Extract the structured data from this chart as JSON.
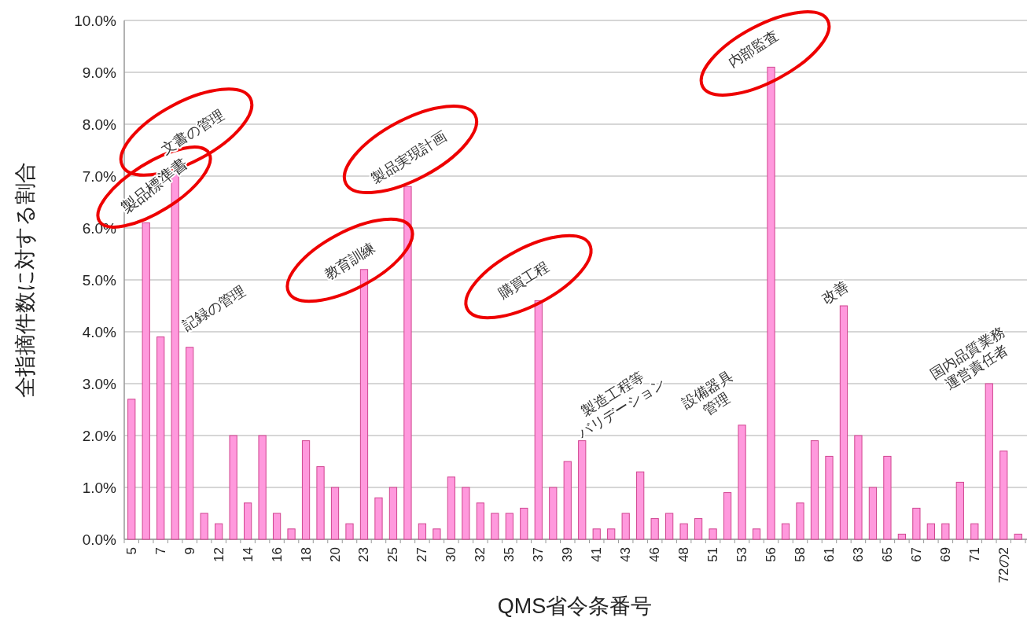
{
  "chart_data": {
    "type": "bar",
    "xlabel": "QMS省令条番号",
    "ylabel": "全指摘件数に対する割合",
    "color": "#ff99dd",
    "categories": [
      "5",
      null,
      "7",
      null,
      "9",
      null,
      "12",
      null,
      "14",
      null,
      "16",
      null,
      "18",
      null,
      "20",
      null,
      "23",
      null,
      "25",
      null,
      "27",
      null,
      "30",
      null,
      "32",
      null,
      "35",
      null,
      "37",
      null,
      "39",
      null,
      "41",
      null,
      "43",
      null,
      "46",
      null,
      "48",
      null,
      "51",
      null,
      "53",
      null,
      "56",
      null,
      "58",
      null,
      "61",
      null,
      "63",
      null,
      "65",
      null,
      "67",
      null,
      "69",
      null,
      "71",
      null,
      "72の2",
      null
    ],
    "values": [
      2.7,
      6.1,
      3.9,
      7.1,
      3.7,
      0.5,
      0.3,
      2.0,
      0.7,
      2.0,
      0.5,
      0.2,
      1.9,
      1.4,
      1.0,
      0.3,
      5.2,
      0.8,
      1.0,
      6.8,
      0.3,
      0.2,
      1.2,
      1.0,
      0.7,
      0.5,
      0.5,
      0.6,
      4.6,
      1.0,
      1.5,
      1.9,
      0.2,
      0.2,
      0.5,
      1.3,
      0.4,
      0.5,
      0.3,
      0.4,
      0.2,
      0.9,
      2.2,
      0.2,
      9.1,
      0.3,
      0.7,
      1.9,
      1.6,
      4.5,
      2.0,
      1.0,
      1.6,
      0.1,
      0.6,
      0.3,
      0.3,
      1.1,
      0.3,
      3.0,
      1.7,
      0.1
    ],
    "ylim": [
      0,
      10
    ],
    "yticks": [
      {
        "value": 0,
        "label": "0.0%"
      },
      {
        "value": 1,
        "label": "1.0%"
      },
      {
        "value": 2,
        "label": "2.0%"
      },
      {
        "value": 3,
        "label": "3.0%"
      },
      {
        "value": 4,
        "label": "4.0%"
      },
      {
        "value": 5,
        "label": "5.0%"
      },
      {
        "value": 6,
        "label": "6.0%"
      },
      {
        "value": 7,
        "label": "7.0%"
      },
      {
        "value": 8,
        "label": "8.0%"
      },
      {
        "value": 9,
        "label": "9.0%"
      },
      {
        "value": 10,
        "label": "10.0%"
      }
    ],
    "grid": "y",
    "annotations": [
      "製品標準書",
      "文書の管理",
      "記録の管理",
      "教育訓練",
      "製品実現計画",
      "購買工程",
      "製造工程等\nバリデーション",
      "設備器具\n管理",
      "内部監査",
      "改善",
      "国内品質業務\n運営責任者"
    ]
  }
}
